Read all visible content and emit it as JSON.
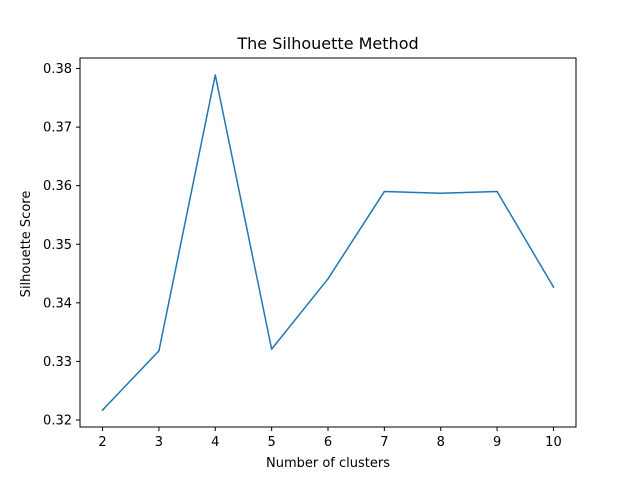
{
  "chart_data": {
    "type": "line",
    "title": "The Silhouette Method",
    "xlabel": "Number of clusters",
    "ylabel": "Silhouette Score",
    "x": [
      2,
      3,
      4,
      5,
      6,
      7,
      8,
      9,
      10
    ],
    "series": [
      {
        "values": [
          0.3217,
          0.3318,
          0.3789,
          0.3321,
          0.3441,
          0.359,
          0.3587,
          0.359,
          0.3427
        ],
        "color": "#1f77b4"
      }
    ],
    "xlim": [
      1.6,
      10.4
    ],
    "ylim": [
      0.3188,
      0.3818
    ],
    "x_ticks": [
      "2",
      "3",
      "4",
      "5",
      "6",
      "7",
      "8",
      "9",
      "10"
    ],
    "y_ticks": [
      "0.32",
      "0.33",
      "0.34",
      "0.35",
      "0.36",
      "0.37",
      "0.38"
    ],
    "grid": false,
    "legend": "none"
  }
}
